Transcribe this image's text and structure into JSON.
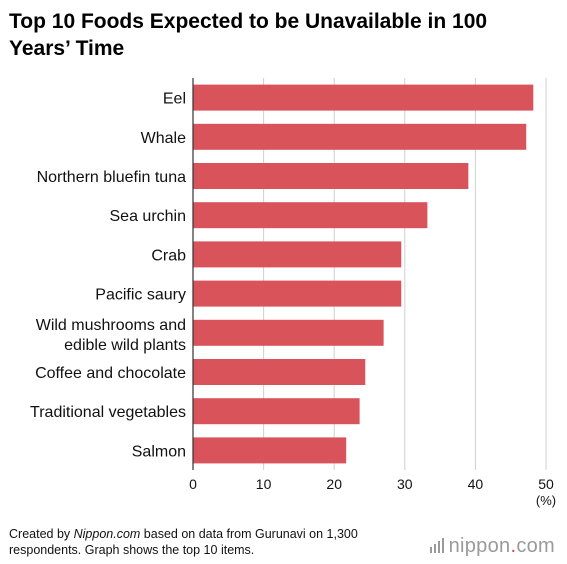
{
  "title": "Top 10 Foods Expected to be Unavailable in 100 Years’ Time",
  "footer": {
    "prefix": "Created by ",
    "source_site": "Nippon.com",
    "suffix": " based on data from Gurunavi on 1,300 respondents. Graph shows the top 10 items."
  },
  "logo": {
    "name": "nippon",
    "dot": ".",
    "tld": "com"
  },
  "colors": {
    "bar": "#d9545a",
    "grid": "#d0d0d0",
    "axis": "#333333"
  },
  "chart_data": {
    "type": "bar",
    "orientation": "horizontal",
    "categories": [
      "Eel",
      "Whale",
      "Northern bluefin tuna",
      "Sea urchin",
      "Crab",
      "Pacific saury",
      "Wild mushrooms and edible wild plants",
      "Coffee and chocolate",
      "Traditional vegetables",
      "Salmon"
    ],
    "values": [
      48.2,
      47.2,
      39.0,
      33.2,
      29.5,
      29.5,
      27.0,
      24.4,
      23.6,
      21.7
    ],
    "xlim": [
      0,
      50
    ],
    "xticks": [
      0,
      10,
      20,
      30,
      40,
      50
    ],
    "unit_label": "(%)",
    "grid": true
  }
}
